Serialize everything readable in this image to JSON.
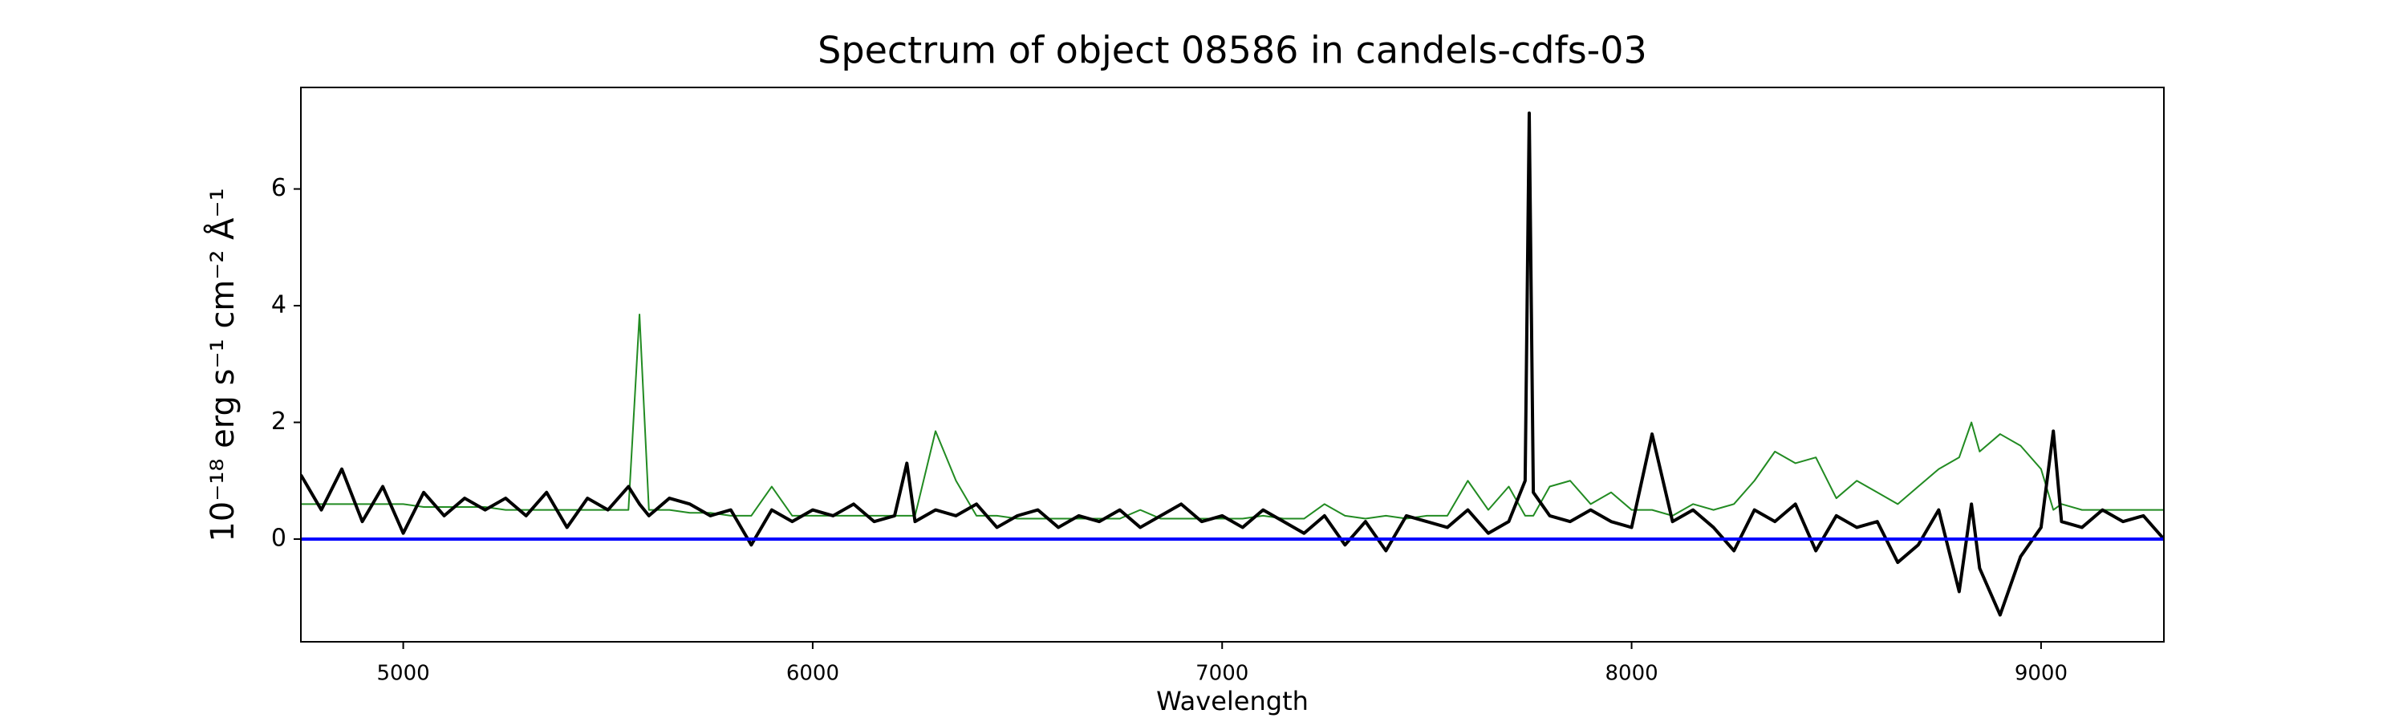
{
  "chart_data": {
    "type": "line",
    "title": "Spectrum of object 08586 in candels-cdfs-03",
    "xlabel": "Wavelength",
    "ylabel": "10⁻¹⁸ erg s⁻¹ cm⁻² Å⁻¹",
    "x": [
      4750,
      4800,
      4850,
      4900,
      4950,
      5000,
      5050,
      5100,
      5150,
      5200,
      5250,
      5300,
      5350,
      5400,
      5450,
      5500,
      5550,
      5577,
      5600,
      5650,
      5700,
      5750,
      5800,
      5850,
      5900,
      5950,
      6000,
      6050,
      6100,
      6150,
      6200,
      6230,
      6250,
      6300,
      6350,
      6400,
      6450,
      6500,
      6550,
      6600,
      6650,
      6700,
      6750,
      6800,
      6850,
      6900,
      6950,
      7000,
      7050,
      7100,
      7150,
      7200,
      7250,
      7300,
      7350,
      7400,
      7450,
      7500,
      7550,
      7600,
      7650,
      7700,
      7740,
      7750,
      7760,
      7800,
      7850,
      7900,
      7950,
      8000,
      8050,
      8100,
      8150,
      8200,
      8250,
      8300,
      8350,
      8400,
      8450,
      8500,
      8550,
      8600,
      8650,
      8700,
      8750,
      8800,
      8830,
      8850,
      8900,
      8950,
      9000,
      9030,
      9050,
      9100,
      9150,
      9200,
      9250,
      9300
    ],
    "series": [
      {
        "color": "#228b22",
        "width": 2,
        "values": [
          0.6,
          0.6,
          0.6,
          0.6,
          0.6,
          0.6,
          0.55,
          0.55,
          0.55,
          0.55,
          0.5,
          0.5,
          0.5,
          0.5,
          0.5,
          0.5,
          0.5,
          3.85,
          0.5,
          0.5,
          0.45,
          0.45,
          0.4,
          0.4,
          0.9,
          0.4,
          0.4,
          0.4,
          0.4,
          0.4,
          0.4,
          0.4,
          0.4,
          1.85,
          1.0,
          0.4,
          0.4,
          0.35,
          0.35,
          0.35,
          0.35,
          0.35,
          0.35,
          0.5,
          0.35,
          0.35,
          0.35,
          0.35,
          0.35,
          0.4,
          0.35,
          0.35,
          0.6,
          0.4,
          0.35,
          0.4,
          0.35,
          0.4,
          0.4,
          1.0,
          0.5,
          0.9,
          0.4,
          0.4,
          0.4,
          0.9,
          1.0,
          0.6,
          0.8,
          0.5,
          0.5,
          0.4,
          0.6,
          0.5,
          0.6,
          1.0,
          1.5,
          1.3,
          1.4,
          0.7,
          1.0,
          0.8,
          0.6,
          0.9,
          1.2,
          1.4,
          2.0,
          1.5,
          1.8,
          1.6,
          1.2,
          0.5,
          0.6,
          0.5,
          0.5,
          0.5,
          0.5,
          0.5
        ]
      },
      {
        "color": "#000000",
        "width": 4,
        "values": [
          1.1,
          0.5,
          1.2,
          0.3,
          0.9,
          0.1,
          0.8,
          0.4,
          0.7,
          0.5,
          0.7,
          0.4,
          0.8,
          0.2,
          0.7,
          0.5,
          0.9,
          0.6,
          0.4,
          0.7,
          0.6,
          0.4,
          0.5,
          -0.1,
          0.5,
          0.3,
          0.5,
          0.4,
          0.6,
          0.3,
          0.4,
          1.3,
          0.3,
          0.5,
          0.4,
          0.6,
          0.2,
          0.4,
          0.5,
          0.2,
          0.4,
          0.3,
          0.5,
          0.2,
          0.4,
          0.6,
          0.3,
          0.4,
          0.2,
          0.5,
          0.3,
          0.1,
          0.4,
          -0.1,
          0.3,
          -0.2,
          0.4,
          0.3,
          0.2,
          0.5,
          0.1,
          0.3,
          1.0,
          7.3,
          0.8,
          0.4,
          0.3,
          0.5,
          0.3,
          0.2,
          1.8,
          0.3,
          0.5,
          0.2,
          -0.2,
          0.5,
          0.3,
          0.6,
          -0.2,
          0.4,
          0.2,
          0.3,
          -0.4,
          -0.1,
          0.5,
          -0.9,
          0.6,
          -0.5,
          -1.3,
          -0.3,
          0.2,
          1.85,
          0.3,
          0.2,
          0.5,
          0.3,
          0.4,
          0.0
        ]
      }
    ],
    "hline": {
      "value": 0,
      "color": "#0000ff"
    },
    "xlim": [
      4750,
      9300
    ],
    "xticks": [
      5000,
      6000,
      7000,
      8000,
      9000
    ],
    "ylim": [
      -1.76,
      7.74
    ],
    "yticks": [
      0,
      2,
      4,
      6
    ]
  }
}
